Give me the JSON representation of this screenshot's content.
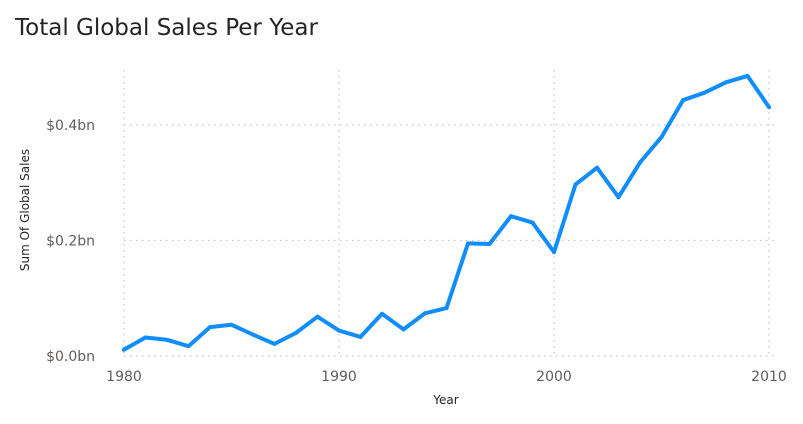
{
  "chart_data": {
    "type": "line",
    "title": "Total Global Sales Per Year",
    "xlabel": "Year",
    "ylabel": "Sum Of Global Sales",
    "x_ticks": [
      1980,
      1990,
      2000,
      2010
    ],
    "y_ticks": [
      {
        "value": 0.0,
        "label": "$0.0bn"
      },
      {
        "value": 0.2,
        "label": "$0.2bn"
      },
      {
        "value": 0.4,
        "label": "$0.4bn"
      }
    ],
    "xlim": [
      1980,
      2010
    ],
    "ylim": [
      0,
      0.4
    ],
    "grid": true,
    "line_color": "#118DFF",
    "series": [
      {
        "x": [
          1980,
          1981,
          1982,
          1983,
          1984,
          1985,
          1986,
          1987,
          1988,
          1989,
          1990,
          1991,
          1992,
          1993,
          1994,
          1995,
          1996,
          1997,
          1998,
          1999,
          2000,
          2001,
          2002,
          2003,
          2004,
          2005,
          2006,
          2007,
          2008,
          2009,
          2010
        ],
        "values": [
          0.011,
          0.032,
          0.028,
          0.017,
          0.05,
          0.054,
          0.037,
          0.021,
          0.04,
          0.068,
          0.044,
          0.033,
          0.073,
          0.046,
          0.074,
          0.083,
          0.195,
          0.194,
          0.242,
          0.231,
          0.18,
          0.297,
          0.326,
          0.275,
          0.335,
          0.379,
          0.443,
          0.456,
          0.474,
          0.485,
          0.431
        ]
      }
    ]
  }
}
